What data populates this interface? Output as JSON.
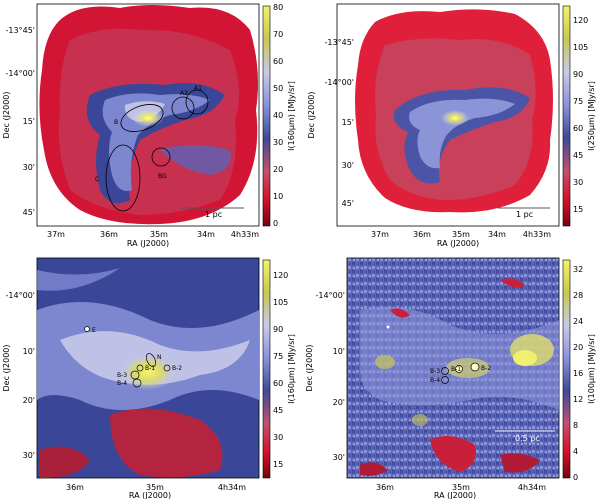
{
  "panels": [
    {
      "ra_ticks": [
        "37m",
        "36m",
        "35m",
        "34m",
        "4h33m"
      ],
      "dec_ticks": [
        "-13°45'",
        "-14°00'",
        "15'",
        "30'",
        "45'"
      ],
      "xlabel": "RA (J2000)",
      "ylabel": "Dec (J2000)",
      "colorbar_label": "I(160μm) [MJy/sr]",
      "colorbar_ticks": [
        "80",
        "70",
        "60",
        "50",
        "40",
        "30",
        "20",
        "10",
        "0"
      ],
      "scale_bar": "1 pc",
      "regions": [
        "A1",
        "A2",
        "B",
        "C",
        "BG"
      ]
    },
    {
      "ra_ticks": [
        "37m",
        "36m",
        "35m",
        "34m",
        "4h33m"
      ],
      "dec_ticks": [
        "-13°45'",
        "-14°00'",
        "15'",
        "30'",
        "45'"
      ],
      "xlabel": "RA (J2000)",
      "ylabel": "Dec (J2000)",
      "colorbar_label": "I(250μm) [MJy/sr]",
      "colorbar_ticks": [
        "120",
        "105",
        "90",
        "75",
        "60",
        "45",
        "30",
        "15"
      ],
      "scale_bar": "1 pc"
    },
    {
      "ra_ticks": [
        "36m",
        "35m",
        "4h34m"
      ],
      "dec_ticks": [
        "-14°00'",
        "10'",
        "20'",
        "30'"
      ],
      "xlabel": "RA (J2000)",
      "ylabel": "Dec (J2000)",
      "colorbar_label": "I(160μm) [MJy/sr]",
      "colorbar_ticks": [
        "120",
        "105",
        "90",
        "75",
        "60",
        "45",
        "30",
        "15"
      ],
      "regions": [
        "E",
        "N",
        "B-1",
        "B-2",
        "B-3",
        "B-4"
      ]
    },
    {
      "ra_ticks": [
        "36m",
        "35m",
        "4h34m"
      ],
      "dec_ticks": [
        "-14°00'",
        "10'",
        "20'",
        "30'"
      ],
      "xlabel": "RA (J2000)",
      "ylabel": "Dec (J2000)",
      "colorbar_label": "I(100μm) [MJy/sr]",
      "colorbar_ticks": [
        "32",
        "28",
        "24",
        "20",
        "16",
        "12",
        "8",
        "4",
        "0"
      ],
      "scale_bar": "0.5 pc",
      "regions": [
        "B-1",
        "B-2",
        "B-3",
        "B-4"
      ]
    }
  ]
}
